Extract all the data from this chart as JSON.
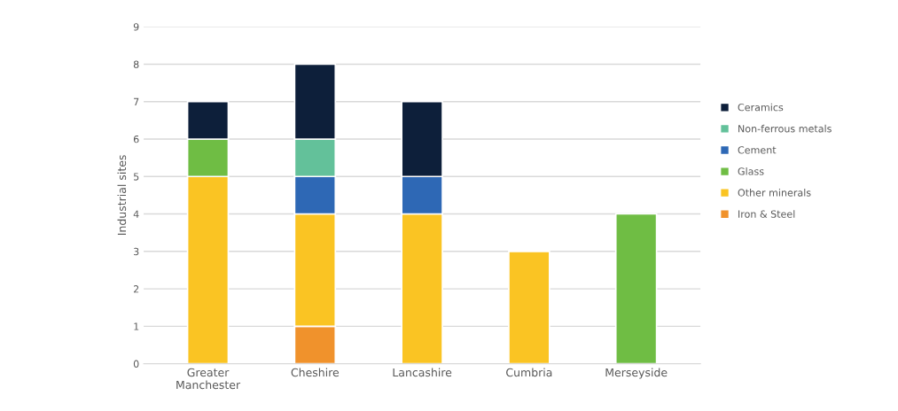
{
  "chart_data": {
    "type": "bar",
    "stacked": true,
    "ylabel": "Industrial sites",
    "categories": [
      "Greater\nManchester",
      "Cheshire",
      "Lancashire",
      "Cumbria",
      "Merseyside"
    ],
    "series": [
      {
        "name": "Iron & Steel",
        "color": "#f0922c",
        "values": [
          0,
          1,
          0,
          0,
          0
        ]
      },
      {
        "name": "Other minerals",
        "color": "#fac423",
        "values": [
          5,
          3,
          4,
          3,
          0
        ]
      },
      {
        "name": "Glass",
        "color": "#6fbd44",
        "values": [
          1,
          0,
          0,
          0,
          4
        ]
      },
      {
        "name": "Cement",
        "color": "#2e68b5",
        "values": [
          0,
          1,
          1,
          0,
          0
        ]
      },
      {
        "name": "Non-ferrous metals",
        "color": "#63c19a",
        "values": [
          0,
          1,
          0,
          0,
          0
        ]
      },
      {
        "name": "Ceramics",
        "color": "#0d1f3a",
        "values": [
          1,
          2,
          2,
          0,
          0
        ]
      }
    ],
    "ylim": [
      0,
      9
    ],
    "yticks": [
      0,
      1,
      2,
      3,
      4,
      5,
      6,
      7,
      8,
      9
    ],
    "grid": "y",
    "legend": "right"
  }
}
